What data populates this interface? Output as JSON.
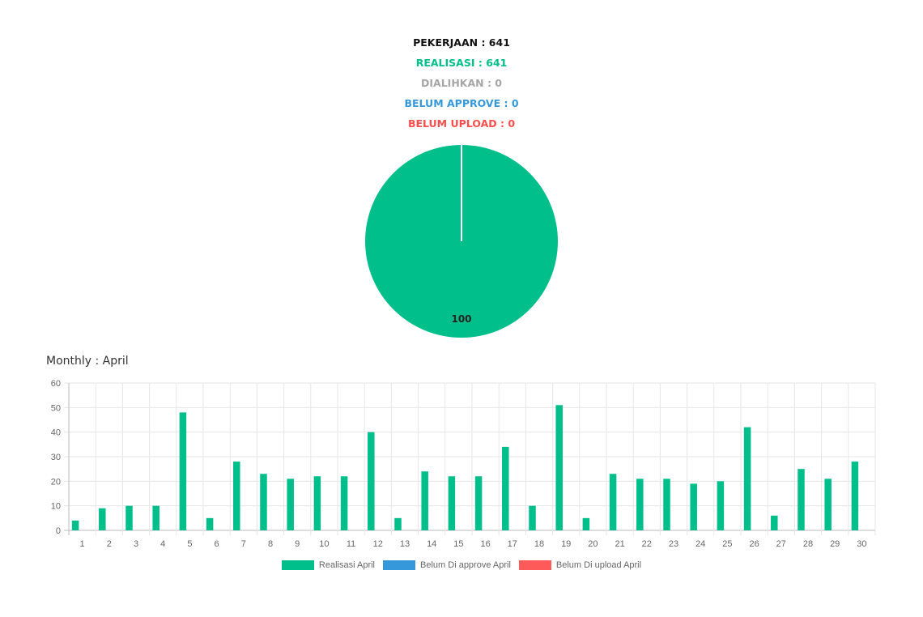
{
  "summary": {
    "pekerjaan": "PEKERJAAN : 641",
    "realisasi": "REALISASI : 641",
    "dialihkan": "DIALIHKAN : 0",
    "belum_approve": "BELUM APPROVE : 0",
    "belum_upload": "BELUM UPLOAD : 0"
  },
  "colors": {
    "pekerjaan": "#111111",
    "realisasi": "#00bf8a",
    "dialihkan": "#a6a6a6",
    "belum_approve": "#3498db",
    "belum_upload": "#ff4d4d"
  },
  "monthly_title": "Monthly : April",
  "chart_data": [
    {
      "type": "pie",
      "slices": [
        {
          "label": "Realisasi",
          "value": 100,
          "color": "#00bf8a"
        }
      ],
      "data_label": "100"
    },
    {
      "type": "bar",
      "categories": [
        "1",
        "2",
        "3",
        "4",
        "5",
        "6",
        "7",
        "8",
        "9",
        "10",
        "11",
        "12",
        "13",
        "14",
        "15",
        "16",
        "17",
        "18",
        "19",
        "20",
        "21",
        "22",
        "23",
        "24",
        "25",
        "26",
        "27",
        "28",
        "29",
        "30"
      ],
      "series": [
        {
          "name": "Realisasi April",
          "color": "#00bf8a",
          "values": [
            4,
            9,
            10,
            10,
            48,
            5,
            28,
            23,
            21,
            22,
            22,
            40,
            5,
            24,
            22,
            22,
            34,
            10,
            51,
            5,
            23,
            21,
            21,
            19,
            20,
            42,
            6,
            25,
            21,
            28
          ]
        },
        {
          "name": "Belum Di approve April",
          "color": "#3498db",
          "values": [
            0,
            0,
            0,
            0,
            0,
            0,
            0,
            0,
            0,
            0,
            0,
            0,
            0,
            0,
            0,
            0,
            0,
            0,
            0,
            0,
            0,
            0,
            0,
            0,
            0,
            0,
            0,
            0,
            0,
            0
          ]
        },
        {
          "name": "Belum Di upload April",
          "color": "#ff5a5a",
          "values": [
            0,
            0,
            0,
            0,
            0,
            0,
            0,
            0,
            0,
            0,
            0,
            0,
            0,
            0,
            0,
            0,
            0,
            0,
            0,
            0,
            0,
            0,
            0,
            0,
            0,
            0,
            0,
            0,
            0,
            0
          ]
        }
      ],
      "ylim": [
        0,
        60
      ],
      "yticks": [
        "0",
        "10",
        "20",
        "30",
        "40",
        "50",
        "60"
      ],
      "grid": true,
      "legend_position": "bottom"
    }
  ]
}
